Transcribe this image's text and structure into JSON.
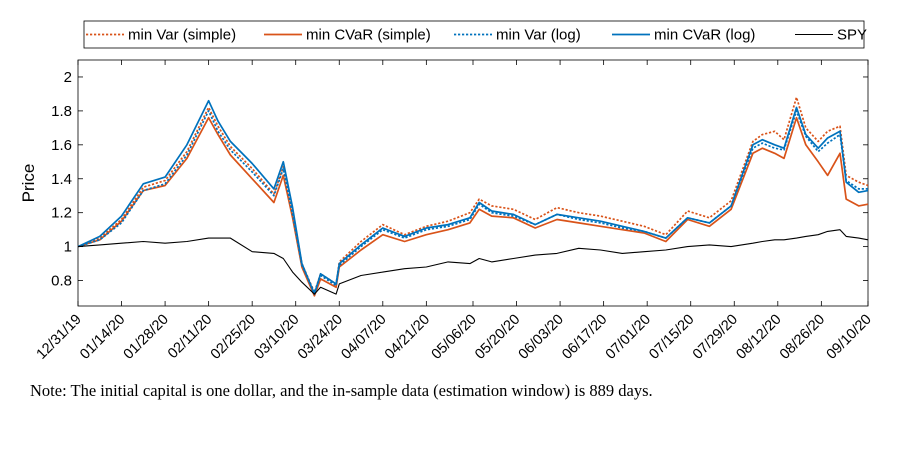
{
  "chart_data": {
    "type": "line",
    "title": "",
    "xlabel": "",
    "ylabel": "Price",
    "ylim": [
      0.65,
      2.1
    ],
    "yticks": [
      0.8,
      1,
      1.2,
      1.4,
      1.6,
      1.8,
      2
    ],
    "ytick_labels": [
      "0.8",
      "1",
      "1.2",
      "1.4",
      "1.6",
      "1.8",
      "2"
    ],
    "xlim": [
      "12/31/19",
      "09/10/20"
    ],
    "xtick_labels": [
      "12/31/19",
      "01/14/20",
      "01/28/20",
      "02/11/20",
      "02/25/20",
      "03/10/20",
      "03/24/20",
      "04/07/20",
      "04/21/20",
      "05/06/20",
      "05/20/20",
      "06/03/20",
      "06/17/20",
      "07/01/20",
      "07/15/20",
      "07/29/20",
      "08/12/20",
      "08/26/20",
      "09/10/20"
    ],
    "grid": false,
    "legend": "top, horizontal",
    "x": [
      "12/31/19",
      "01/07/20",
      "01/14/20",
      "01/21/20",
      "01/28/20",
      "02/04/20",
      "02/11/20",
      "02/14/20",
      "02/18/20",
      "02/25/20",
      "03/03/20",
      "03/06/20",
      "03/09/20",
      "03/12/20",
      "03/16/20",
      "03/18/20",
      "03/23/20",
      "03/24/20",
      "03/31/20",
      "04/07/20",
      "04/14/20",
      "04/21/20",
      "04/28/20",
      "05/05/20",
      "05/08/20",
      "05/12/20",
      "05/19/20",
      "05/26/20",
      "06/02/20",
      "06/09/20",
      "06/16/20",
      "06/23/20",
      "06/30/20",
      "07/07/20",
      "07/14/20",
      "07/21/20",
      "07/28/20",
      "08/04/20",
      "08/07/20",
      "08/11/20",
      "08/14/20",
      "08/18/20",
      "08/21/20",
      "08/25/20",
      "08/28/20",
      "09/01/20",
      "09/03/20",
      "09/07/20",
      "09/10/20"
    ],
    "series": [
      {
        "name": "min Var (simple)",
        "color": "#d95319",
        "style": "dotted",
        "values": [
          1.0,
          1.05,
          1.16,
          1.35,
          1.39,
          1.56,
          1.82,
          1.71,
          1.59,
          1.46,
          1.31,
          1.47,
          1.21,
          0.9,
          0.73,
          0.84,
          0.78,
          0.91,
          1.03,
          1.13,
          1.07,
          1.12,
          1.15,
          1.2,
          1.28,
          1.24,
          1.22,
          1.16,
          1.23,
          1.2,
          1.18,
          1.15,
          1.12,
          1.07,
          1.21,
          1.17,
          1.27,
          1.62,
          1.66,
          1.68,
          1.63,
          1.88,
          1.7,
          1.62,
          1.68,
          1.71,
          1.42,
          1.38,
          1.36
        ]
      },
      {
        "name": "min CVaR (simple)",
        "color": "#d95319",
        "style": "solid",
        "values": [
          1.0,
          1.04,
          1.15,
          1.33,
          1.36,
          1.52,
          1.76,
          1.66,
          1.54,
          1.4,
          1.26,
          1.42,
          1.17,
          0.88,
          0.71,
          0.81,
          0.76,
          0.88,
          0.98,
          1.07,
          1.03,
          1.07,
          1.1,
          1.14,
          1.22,
          1.18,
          1.17,
          1.11,
          1.16,
          1.14,
          1.12,
          1.1,
          1.08,
          1.03,
          1.16,
          1.12,
          1.22,
          1.55,
          1.58,
          1.55,
          1.52,
          1.76,
          1.6,
          1.5,
          1.42,
          1.55,
          1.28,
          1.24,
          1.25
        ]
      },
      {
        "name": "min Var (log)",
        "color": "#0072bd",
        "style": "dotted",
        "values": [
          1.0,
          1.04,
          1.14,
          1.33,
          1.37,
          1.54,
          1.8,
          1.68,
          1.57,
          1.44,
          1.3,
          1.46,
          1.19,
          0.89,
          0.73,
          0.83,
          0.77,
          0.89,
          1.0,
          1.1,
          1.05,
          1.1,
          1.12,
          1.16,
          1.25,
          1.2,
          1.18,
          1.13,
          1.19,
          1.16,
          1.14,
          1.11,
          1.09,
          1.05,
          1.17,
          1.14,
          1.24,
          1.58,
          1.61,
          1.58,
          1.57,
          1.8,
          1.65,
          1.56,
          1.61,
          1.66,
          1.39,
          1.34,
          1.34
        ]
      },
      {
        "name": "min CVaR (log)",
        "color": "#0072bd",
        "style": "solid",
        "values": [
          1.0,
          1.06,
          1.18,
          1.37,
          1.41,
          1.6,
          1.86,
          1.74,
          1.62,
          1.49,
          1.34,
          1.5,
          1.23,
          0.9,
          0.72,
          0.84,
          0.78,
          0.9,
          1.01,
          1.11,
          1.06,
          1.11,
          1.13,
          1.17,
          1.26,
          1.21,
          1.19,
          1.13,
          1.19,
          1.17,
          1.15,
          1.12,
          1.09,
          1.05,
          1.17,
          1.14,
          1.24,
          1.6,
          1.63,
          1.6,
          1.58,
          1.82,
          1.66,
          1.58,
          1.64,
          1.68,
          1.38,
          1.32,
          1.33
        ]
      },
      {
        "name": "SPY",
        "color": "#000000",
        "style": "solid",
        "values": [
          1.0,
          1.01,
          1.02,
          1.03,
          1.02,
          1.03,
          1.05,
          1.05,
          1.05,
          0.97,
          0.96,
          0.93,
          0.85,
          0.79,
          0.72,
          0.76,
          0.72,
          0.78,
          0.83,
          0.85,
          0.87,
          0.88,
          0.91,
          0.9,
          0.93,
          0.91,
          0.93,
          0.95,
          0.96,
          0.99,
          0.98,
          0.96,
          0.97,
          0.98,
          1.0,
          1.01,
          1.0,
          1.02,
          1.03,
          1.04,
          1.04,
          1.05,
          1.06,
          1.07,
          1.09,
          1.1,
          1.06,
          1.05,
          1.04
        ]
      }
    ]
  },
  "note": "Note:  The initial capital is one dollar, and the in-sample data (estimation window) is 889 days."
}
